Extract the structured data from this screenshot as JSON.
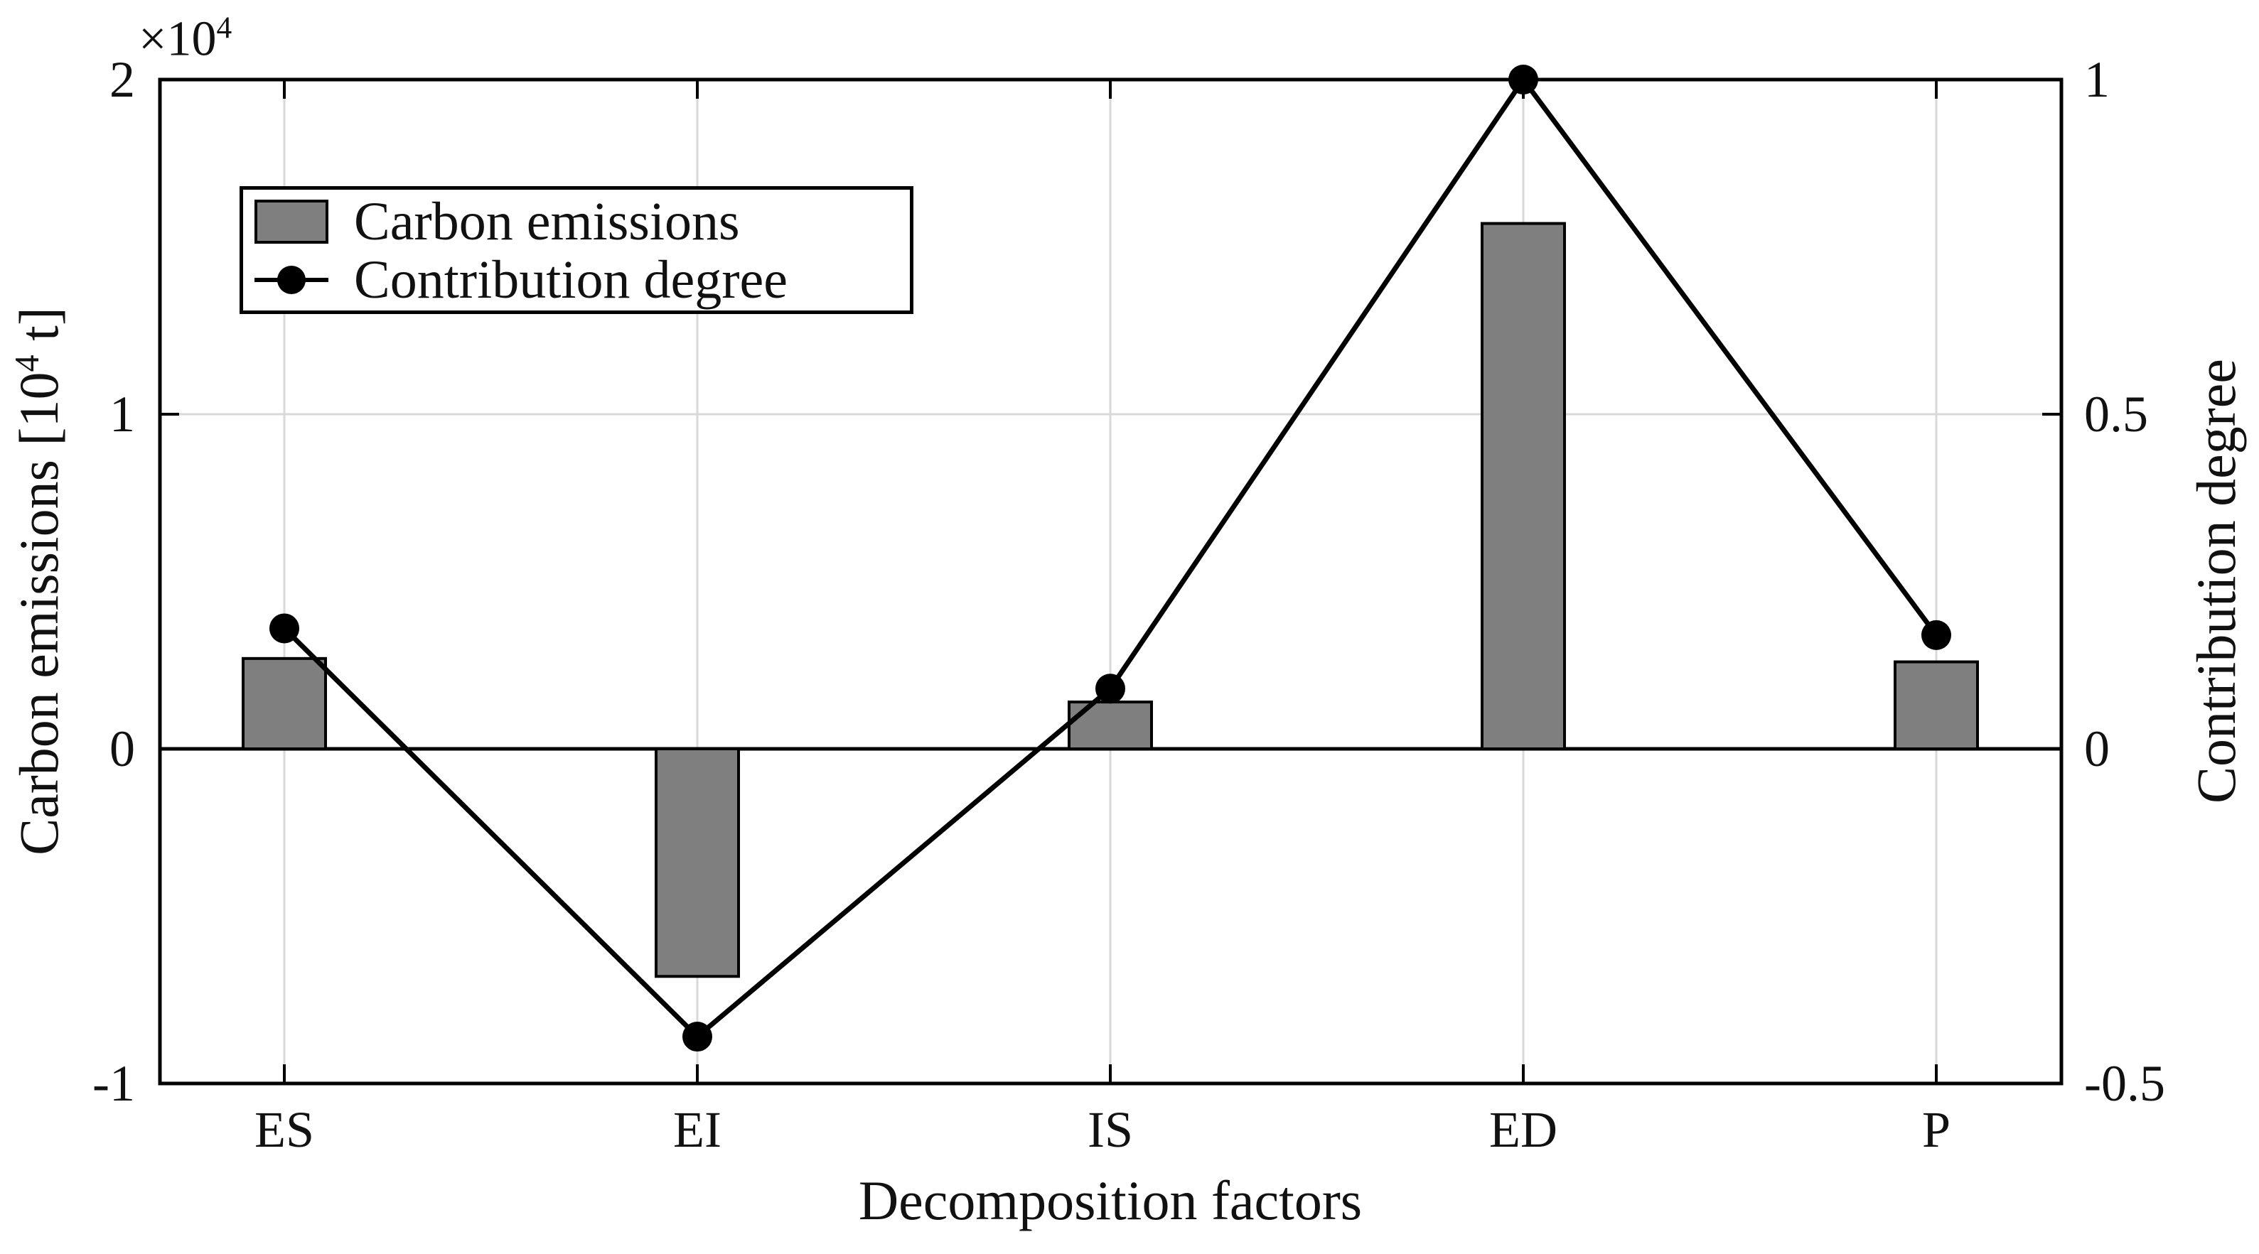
{
  "chart_data": {
    "type": "combo-bar-line",
    "title": "",
    "categories": [
      "ES",
      "EI",
      "IS",
      "ED",
      "P"
    ],
    "series": [
      {
        "name": "Carbon emissions",
        "type": "bar",
        "axis": "left",
        "color": "#7f7f7f",
        "edge_color": "#000000",
        "values": [
          0.27,
          -0.68,
          0.14,
          1.57,
          0.26
        ],
        "value_unit": "x10^4 t"
      },
      {
        "name": "Contribution degree",
        "type": "line",
        "axis": "right",
        "color": "#000000",
        "marker": "filled-circle",
        "values": [
          0.18,
          -0.43,
          0.09,
          1.0,
          0.17
        ]
      }
    ],
    "xlabel": "Decomposition factors",
    "left_axis": {
      "label_text": "Carbon emissions [10⁴ t]",
      "label_parts": {
        "pre": "Carbon emissions [10",
        "exp": "4",
        "post": " t]"
      },
      "multiplier_parts": {
        "pre": "×10",
        "exp": "4"
      },
      "ticks": [
        {
          "label": "2",
          "value": 2
        },
        {
          "label": "1",
          "value": 1
        },
        {
          "label": "0",
          "value": 0
        },
        {
          "label": "-1",
          "value": -1
        }
      ],
      "lim": [
        -1,
        2
      ]
    },
    "right_axis": {
      "label": "Contribution degree",
      "ticks": [
        {
          "label": "1",
          "value": 1
        },
        {
          "label": "0.5",
          "value": 0.5
        },
        {
          "label": "0",
          "value": 0
        },
        {
          "label": "-0.5",
          "value": -0.5
        }
      ],
      "lim": [
        -0.5,
        1
      ]
    },
    "grid": true,
    "legend": {
      "position": "upper-left"
    },
    "colors": {
      "bar_fill": "#7f7f7f",
      "bar_edge": "#000000",
      "line": "#000000",
      "grid": "#d9d9d9",
      "axis": "#000000",
      "zero_line": "#000000",
      "background": "#ffffff"
    }
  }
}
